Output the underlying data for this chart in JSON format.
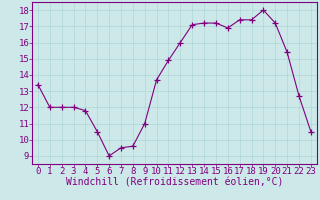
{
  "x": [
    0,
    1,
    2,
    3,
    4,
    5,
    6,
    7,
    8,
    9,
    10,
    11,
    12,
    13,
    14,
    15,
    16,
    17,
    18,
    19,
    20,
    21,
    22,
    23
  ],
  "y": [
    13.4,
    12.0,
    12.0,
    12.0,
    11.8,
    10.5,
    9.0,
    9.5,
    9.6,
    11.0,
    13.7,
    14.9,
    16.0,
    17.1,
    17.2,
    17.2,
    16.9,
    17.4,
    17.4,
    18.0,
    17.2,
    15.4,
    12.7,
    10.5
  ],
  "line_color": "#800080",
  "marker": "+",
  "marker_size": 4,
  "xlabel": "Windchill (Refroidissement éolien,°C)",
  "xlim": [
    -0.5,
    23.5
  ],
  "ylim": [
    8.5,
    18.5
  ],
  "yticks": [
    9,
    10,
    11,
    12,
    13,
    14,
    15,
    16,
    17,
    18
  ],
  "xticks": [
    0,
    1,
    2,
    3,
    4,
    5,
    6,
    7,
    8,
    9,
    10,
    11,
    12,
    13,
    14,
    15,
    16,
    17,
    18,
    19,
    20,
    21,
    22,
    23
  ],
  "grid_color": "#b0d8d8",
  "background_color": "#cce8e8",
  "line_bg_color": "#cce8e8",
  "xlabel_color": "#800080",
  "tick_label_color": "#800080",
  "xlabel_fontsize": 7.0,
  "tick_fontsize": 6.5,
  "spine_color": "#800080",
  "bottom_spine_color": "#800080"
}
